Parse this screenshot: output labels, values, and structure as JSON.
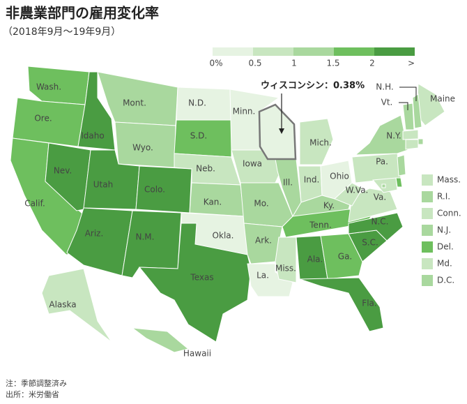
{
  "header": {
    "title": "非農業部門の雇用変化率",
    "subtitle": "（2018年9月〜19年9月）"
  },
  "legend": {
    "labels": [
      "0%",
      "0.5",
      "1",
      "1.5",
      "2",
      ">"
    ],
    "colors": [
      "#e6f3e2",
      "#c8e6c0",
      "#a9d89e",
      "#6ebf5e",
      "#4a9c42"
    ]
  },
  "states": [
    {
      "name": "Wash.",
      "class": 3
    },
    {
      "name": "Ore.",
      "class": 3
    },
    {
      "name": "Calif.",
      "class": 3
    },
    {
      "name": "Idaho",
      "class": 4
    },
    {
      "name": "Nev.",
      "class": 4
    },
    {
      "name": "Mont.",
      "class": 2
    },
    {
      "name": "Wyo.",
      "class": 2
    },
    {
      "name": "Utah",
      "class": 4
    },
    {
      "name": "Colo.",
      "class": 4
    },
    {
      "name": "Ariz.",
      "class": 4
    },
    {
      "name": "N.M.",
      "class": 4
    },
    {
      "name": "N.D.",
      "class": 0
    },
    {
      "name": "S.D.",
      "class": 3
    },
    {
      "name": "Neb.",
      "class": 1
    },
    {
      "name": "Kan.",
      "class": 2
    },
    {
      "name": "Okla.",
      "class": 0
    },
    {
      "name": "Texas",
      "class": 4
    },
    {
      "name": "Minn.",
      "class": 0
    },
    {
      "name": "Iowa",
      "class": 1
    },
    {
      "name": "Mo.",
      "class": 2
    },
    {
      "name": "Ark.",
      "class": 2
    },
    {
      "name": "La.",
      "class": 0
    },
    {
      "name": null,
      "class": 0
    },
    {
      "name": "Ill.",
      "class": 2
    },
    {
      "name": "Mich.",
      "class": 1
    },
    {
      "name": "Ind.",
      "class": 1
    },
    {
      "name": "Ohio",
      "class": 0
    },
    {
      "name": "Ky.",
      "class": 2
    },
    {
      "name": "Tenn.",
      "class": 3
    },
    {
      "name": "Miss.",
      "class": 1
    },
    {
      "name": "Ala.",
      "class": 4
    },
    {
      "name": "Ga.",
      "class": 3
    },
    {
      "name": "Fla.",
      "class": 4
    },
    {
      "name": "S.C.",
      "class": 4
    },
    {
      "name": "N.C.",
      "class": 4
    },
    {
      "name": "Va.",
      "class": 1
    },
    {
      "name": "W.Va.",
      "class": 1
    },
    {
      "name": "Pa.",
      "class": 1
    },
    {
      "name": "N.Y.",
      "class": 2
    },
    {
      "name": "Maine",
      "class": 1
    },
    {
      "name": "N.H.",
      "class": 2
    },
    {
      "name": "Vt.",
      "class": 2
    },
    {
      "name": "Alaska",
      "class": 1
    },
    {
      "name": "Hawaii",
      "class": 2
    }
  ],
  "small_states": [
    {
      "name": "Mass.",
      "class": 1
    },
    {
      "name": "R.I.",
      "class": 2
    },
    {
      "name": "Conn.",
      "class": 1
    },
    {
      "name": "N.J.",
      "class": 2
    },
    {
      "name": "Del.",
      "class": 3
    },
    {
      "name": "Md.",
      "class": 1
    },
    {
      "name": "D.C.",
      "class": 2
    }
  ],
  "callout": "ウィスコンシン：0.38%",
  "notes": [
    "注：季節調整済み",
    "出所：米労働省"
  ]
}
